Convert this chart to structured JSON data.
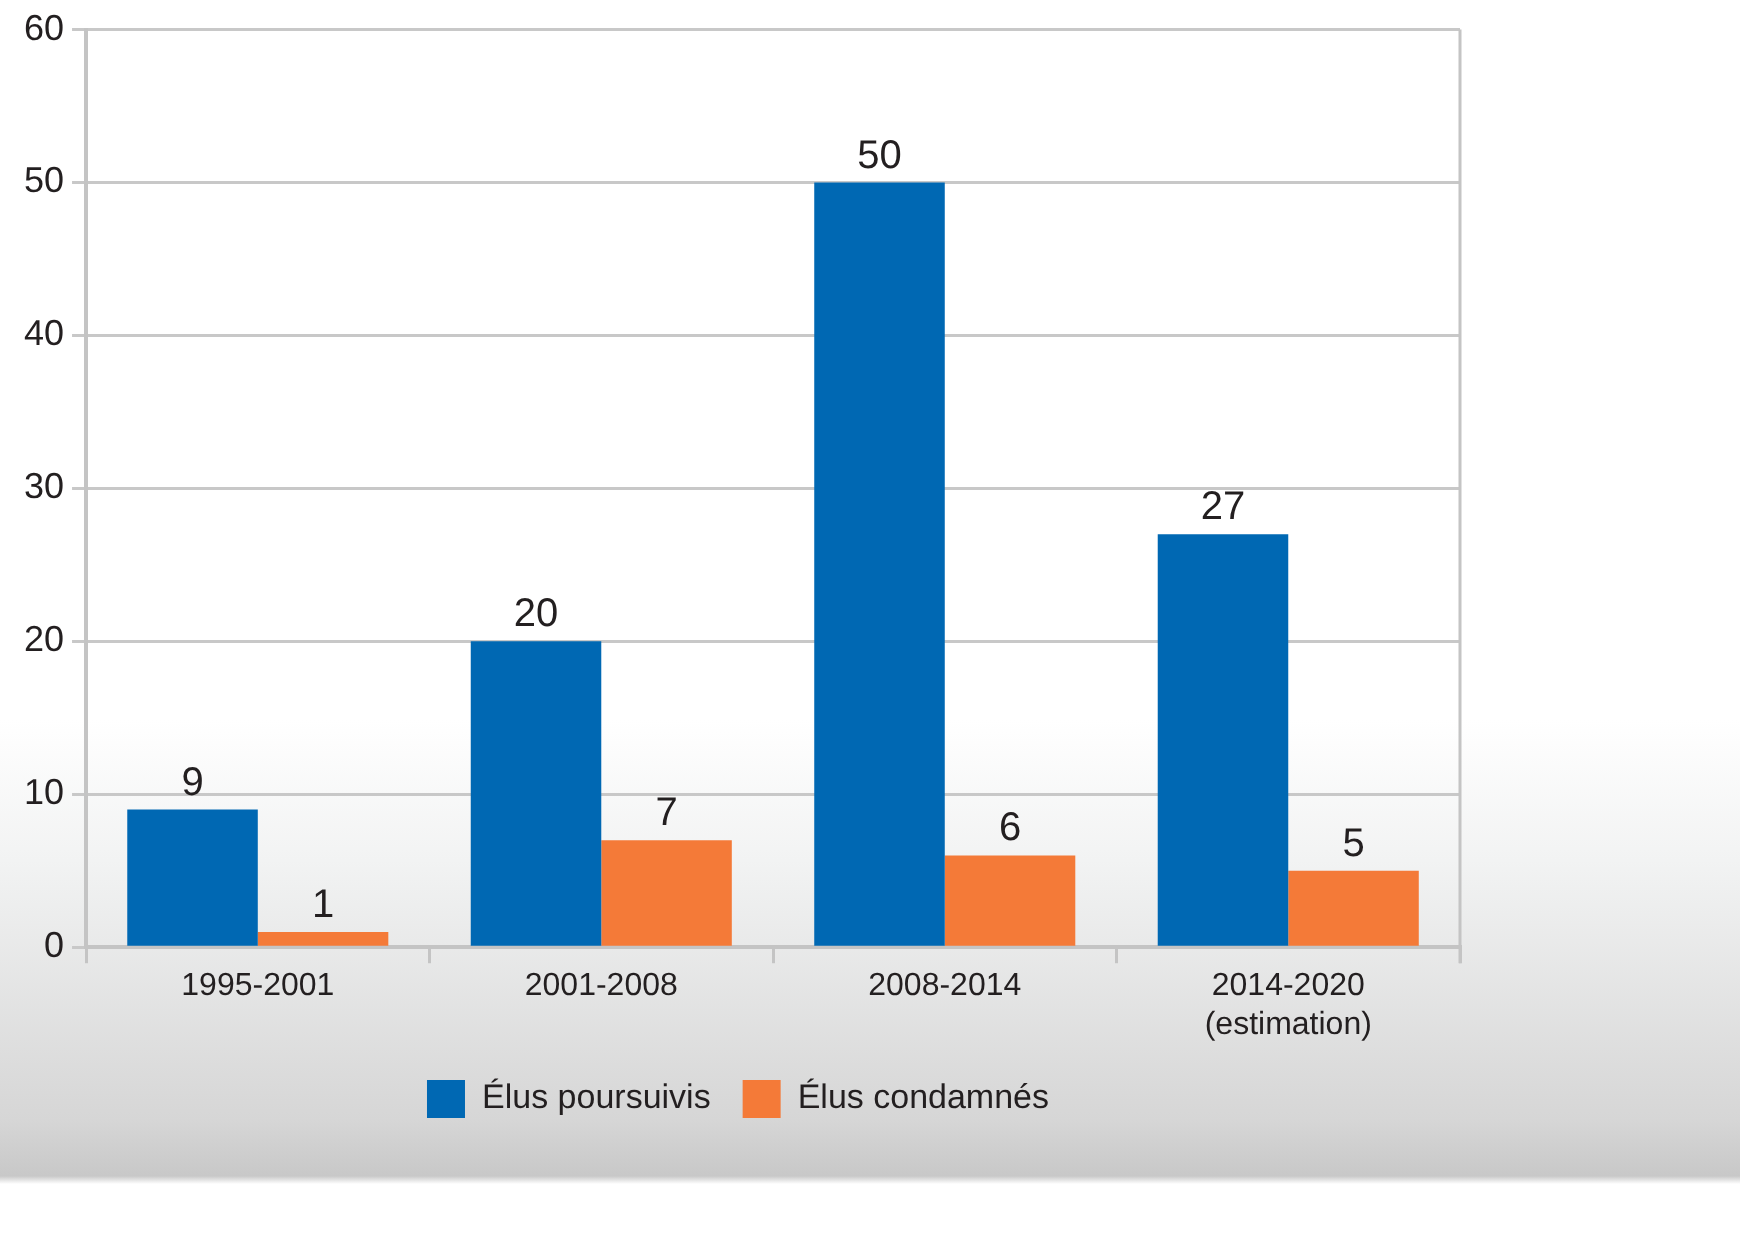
{
  "chart_data": {
    "type": "bar",
    "categories": [
      "1995-2001",
      "2001-2008",
      "2008-2014",
      "2014-2020 (estimation)"
    ],
    "series": [
      {
        "name": "Élus poursuivis",
        "color": "#0068b3",
        "values": [
          9,
          20,
          50,
          27
        ]
      },
      {
        "name": "Élus condamnés",
        "color": "#f47a38",
        "values": [
          1,
          7,
          6,
          5
        ]
      }
    ],
    "ylim": [
      0,
      60
    ],
    "yticks": [
      0,
      10,
      20,
      30,
      40,
      50,
      60
    ],
    "grid": "y",
    "legend": "bottom",
    "data_labels": true
  }
}
